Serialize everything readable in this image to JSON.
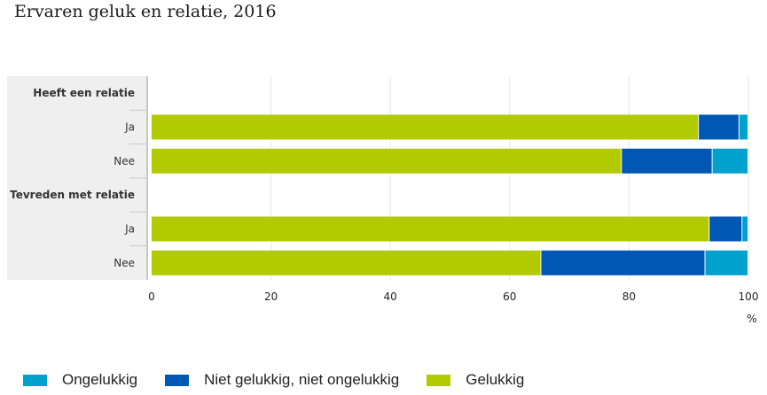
{
  "chart_data": {
    "type": "bar",
    "orientation": "horizontal",
    "stacked": true,
    "title": "Ervaren geluk en relatie, 2016",
    "xlabel": "%",
    "ylabel": "",
    "xlim": [
      0,
      100
    ],
    "xticks": [
      0,
      20,
      40,
      60,
      80,
      100
    ],
    "grid": true,
    "legend_position": "bottom",
    "groups": [
      {
        "label": "Heeft een relatie",
        "rows": [
          0,
          1
        ]
      },
      {
        "label": "Tevreden met relatie",
        "rows": [
          2,
          3
        ]
      }
    ],
    "categories": [
      "Ja",
      "Nee",
      "Ja",
      "Nee"
    ],
    "series": [
      {
        "name": "Gelukkig",
        "color": "#b2cb00",
        "values": [
          91.7,
          78.8,
          93.5,
          65.3
        ]
      },
      {
        "name": "Niet gelukkig, niet ongelukkig",
        "color": "#0057b4",
        "values": [
          6.8,
          15.2,
          5.5,
          27.5
        ]
      },
      {
        "name": "Ongelukkig",
        "color": "#00a1cd",
        "values": [
          1.5,
          6.0,
          1.0,
          7.2
        ]
      }
    ],
    "legend_order": [
      "Ongelukkig",
      "Niet gelukkig, niet ongelukkig",
      "Gelukkig"
    ]
  }
}
